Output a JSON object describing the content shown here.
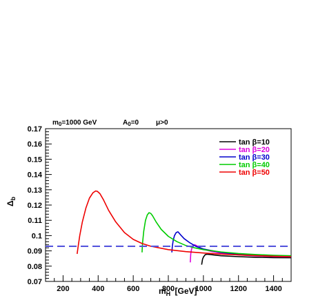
{
  "header": {
    "m0": "m",
    "m0_sub": "0",
    "m0_val": "=1000 GeV",
    "a0": "A",
    "a0_sub": "0",
    "a0_val": "=0",
    "mu": "μ>0"
  },
  "chart_data": {
    "type": "line",
    "xlabel": {
      "main": "m",
      "sub": "H",
      "sup": "-",
      "unit": " [GeV]"
    },
    "ylabel": {
      "main": "Δ",
      "sub": "b"
    },
    "xlim": [
      100,
      1500
    ],
    "ylim": [
      0.07,
      0.17
    ],
    "xticks": [
      200,
      400,
      600,
      800,
      1000,
      1200,
      1400
    ],
    "yticks": [
      0.07,
      0.08,
      0.09,
      0.1,
      0.11,
      0.12,
      0.13,
      0.14,
      0.15,
      0.16,
      0.17
    ],
    "ytick_labels": [
      "0.07",
      "0.08",
      "0.09",
      "0.1",
      "0.11",
      "0.12",
      "0.13",
      "0.14",
      "0.15",
      "0.16",
      "0.17"
    ],
    "xtick_labels": [
      "200",
      "400",
      "600",
      "800",
      "1000",
      "1200",
      "1400"
    ],
    "reference_line": {
      "y": 0.093,
      "color": "#5555dd",
      "style": "dashed"
    },
    "legend_position": "top-right",
    "series": [
      {
        "name": "tan β=10",
        "color": "#000000",
        "x": [
          990,
          995,
          1000,
          1010,
          1020,
          1040,
          1060,
          1100,
          1200,
          1300,
          1400,
          1500
        ],
        "y": [
          0.081,
          0.0845,
          0.086,
          0.0875,
          0.0878,
          0.0876,
          0.0873,
          0.0868,
          0.0862,
          0.0858,
          0.0856,
          0.0855
        ]
      },
      {
        "name": "tan β=20",
        "color": "#dd00dd",
        "x": [
          925,
          928,
          932,
          940,
          950,
          960,
          975,
          1000,
          1050,
          1100,
          1200,
          1300,
          1400,
          1500
        ],
        "y": [
          0.0825,
          0.088,
          0.091,
          0.0935,
          0.094,
          0.0935,
          0.0925,
          0.091,
          0.0895,
          0.0885,
          0.0874,
          0.0867,
          0.0863,
          0.0861
        ]
      },
      {
        "name": "tan β=30",
        "color": "#0000cc",
        "x": [
          820,
          823,
          828,
          835,
          845,
          855,
          870,
          890,
          920,
          960,
          1000,
          1100,
          1200,
          1300,
          1400,
          1500
        ],
        "y": [
          0.089,
          0.093,
          0.097,
          0.1,
          0.102,
          0.1025,
          0.1005,
          0.098,
          0.0955,
          0.0928,
          0.0912,
          0.089,
          0.0878,
          0.0871,
          0.0866,
          0.0863
        ]
      },
      {
        "name": "tan β=40",
        "color": "#00cc00",
        "x": [
          650,
          653,
          660,
          670,
          680,
          690,
          700,
          710,
          730,
          760,
          800,
          850,
          900,
          950,
          1000,
          1100,
          1200,
          1300,
          1400,
          1500
        ],
        "y": [
          0.089,
          0.095,
          0.103,
          0.11,
          0.1135,
          0.115,
          0.1145,
          0.113,
          0.109,
          0.104,
          0.0995,
          0.096,
          0.0935,
          0.092,
          0.0908,
          0.0893,
          0.0883,
          0.0876,
          0.0871,
          0.0868
        ]
      },
      {
        "name": "tan β=50",
        "color": "#ee0000",
        "x": [
          280,
          285,
          295,
          310,
          330,
          350,
          370,
          385,
          395,
          410,
          430,
          460,
          500,
          550,
          600,
          650,
          700,
          800,
          900,
          1000,
          1100,
          1200,
          1300,
          1400,
          1500
        ],
        "y": [
          0.088,
          0.092,
          0.1,
          0.109,
          0.118,
          0.1245,
          0.128,
          0.1292,
          0.129,
          0.1275,
          0.1235,
          0.1165,
          0.109,
          0.102,
          0.0975,
          0.0948,
          0.093,
          0.0908,
          0.0895,
          0.0886,
          0.0879,
          0.0874,
          0.0869,
          0.0865,
          0.0862
        ]
      }
    ]
  }
}
